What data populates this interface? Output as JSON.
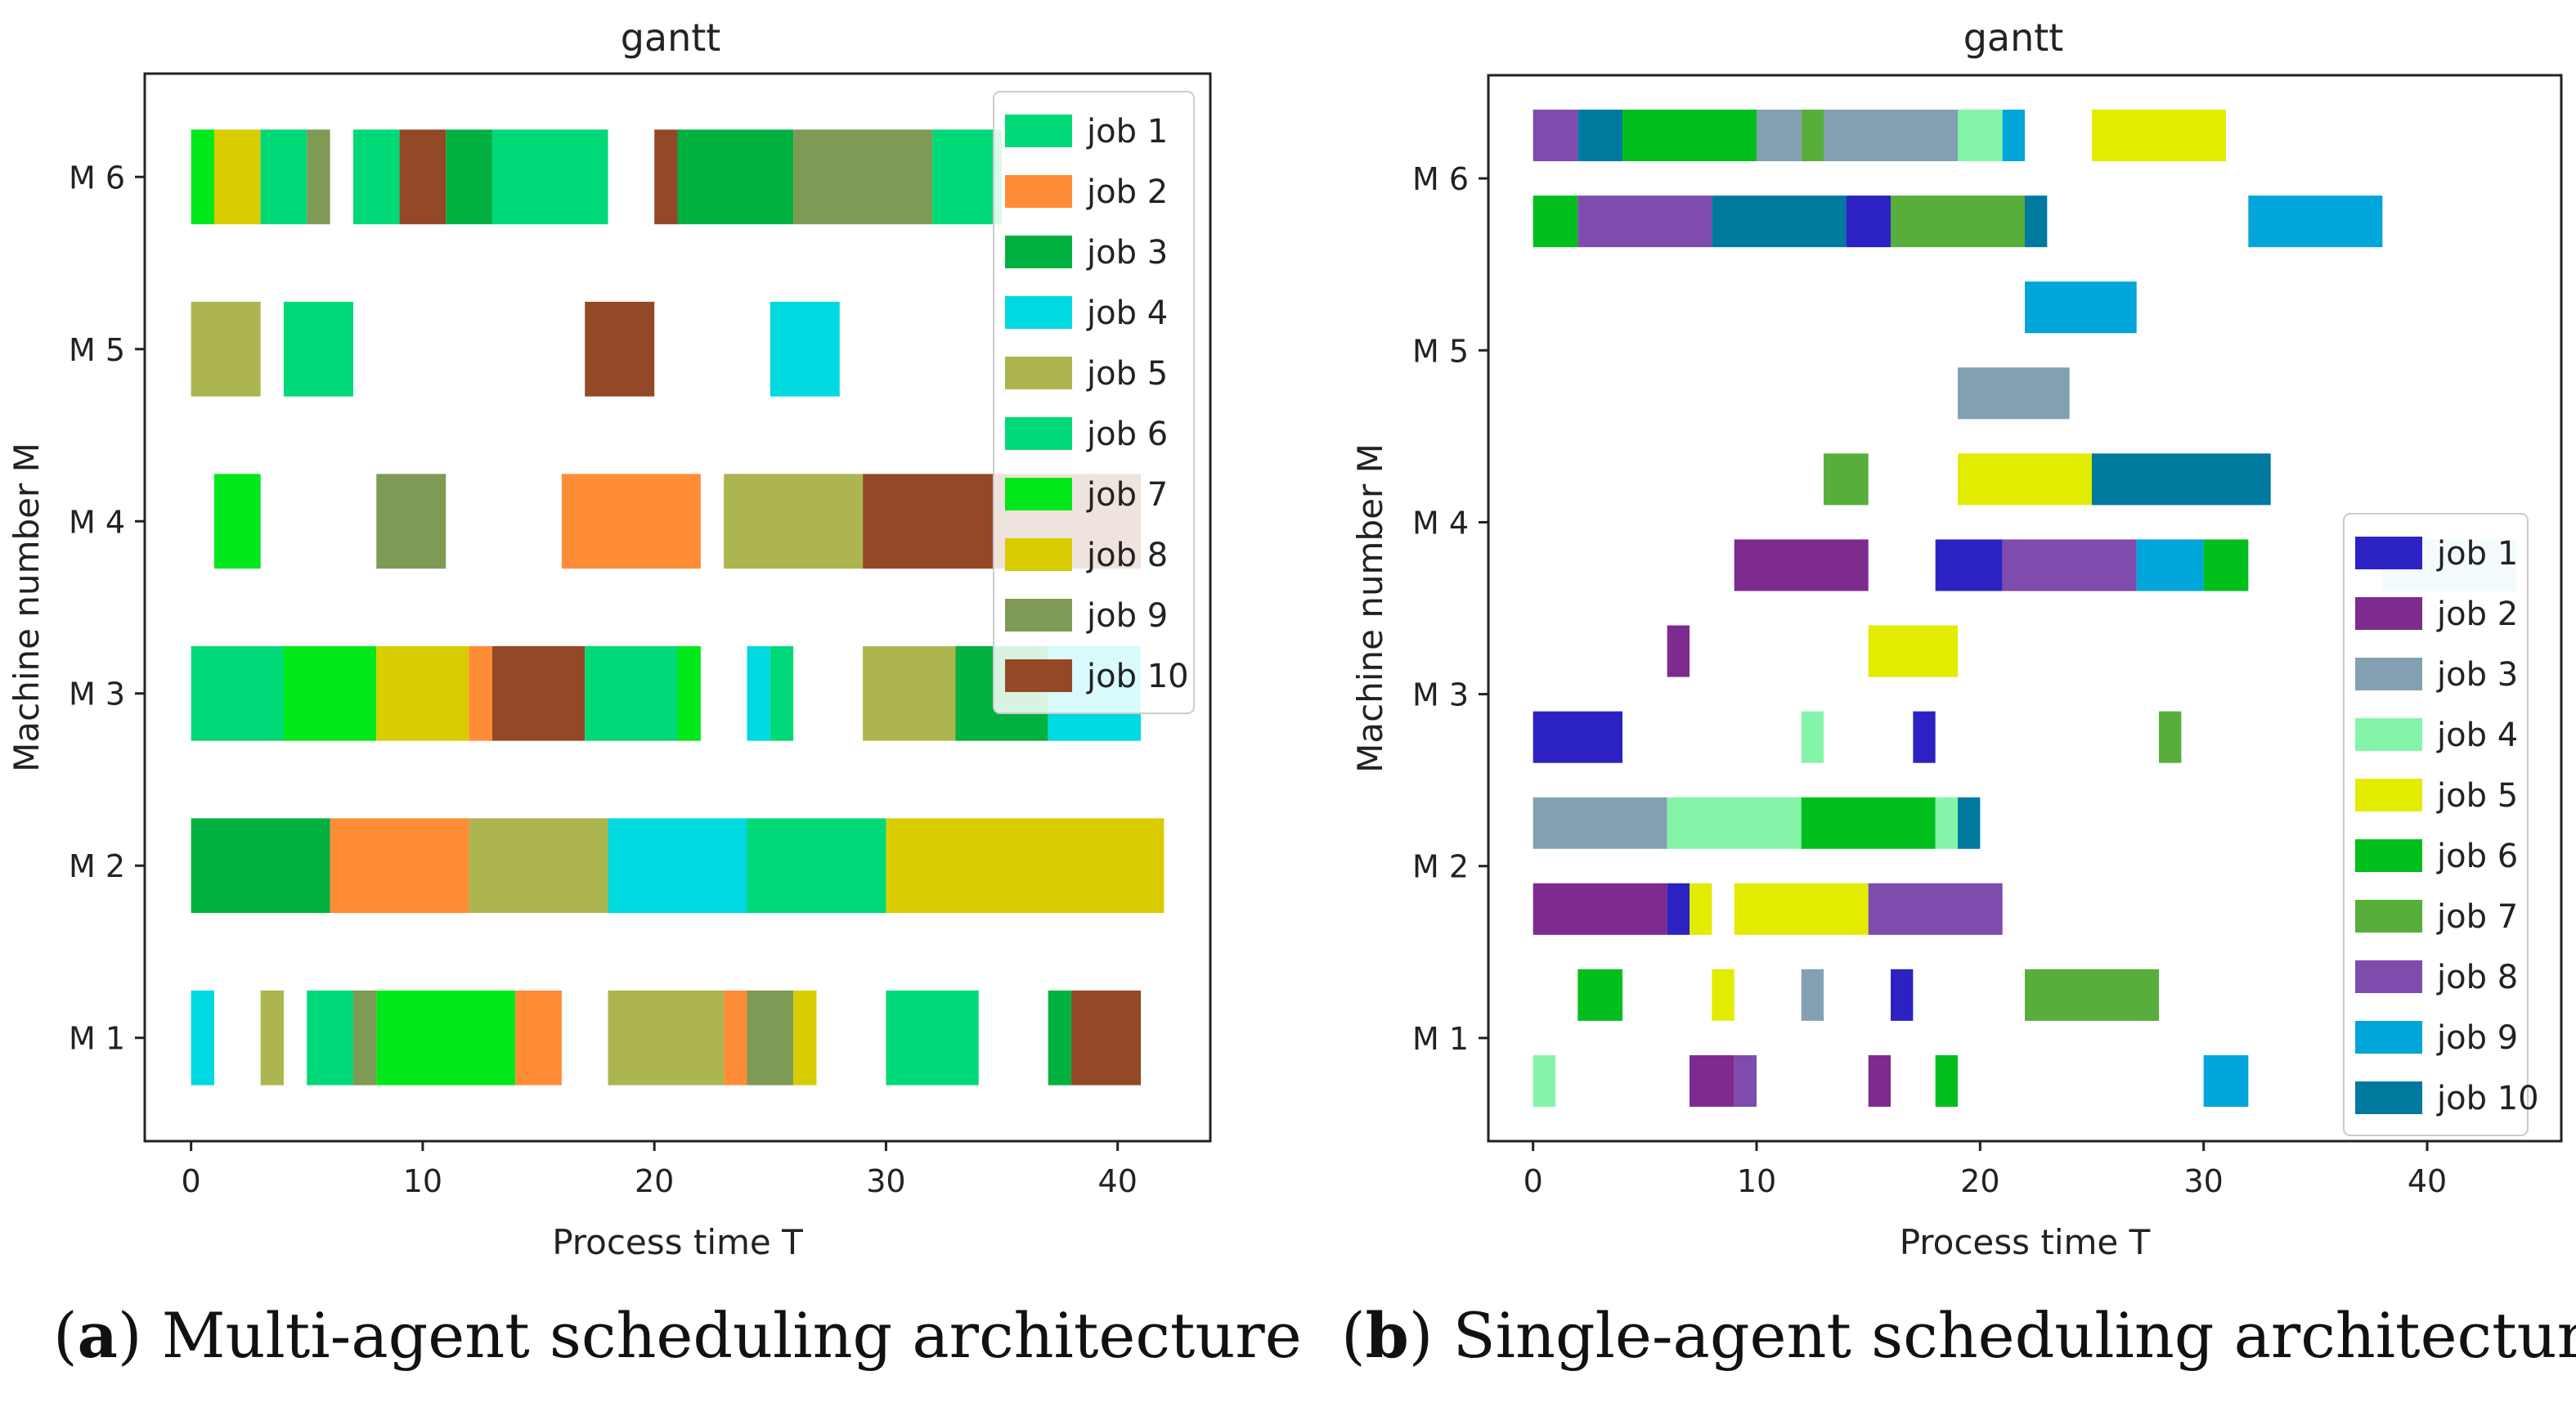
{
  "chart_data": [
    {
      "type": "gantt",
      "title": "gantt",
      "xlabel": "Process time T",
      "ylabel": "Machine number M",
      "xlim": [
        -2,
        44
      ],
      "xticks": [
        0,
        10,
        20,
        30,
        40
      ],
      "machines": [
        "M 1",
        "M 2",
        "M 3",
        "M 4",
        "M 5",
        "M 6"
      ],
      "legend": {
        "location": "top-right",
        "jobs": [
          {
            "name": "job 1",
            "color": "#00d977"
          },
          {
            "name": "job 2",
            "color": "#ff8c36"
          },
          {
            "name": "job 3",
            "color": "#00b140"
          },
          {
            "name": "job 4",
            "color": "#00d9e0"
          },
          {
            "name": "job 5",
            "color": "#adb54f"
          },
          {
            "name": "job 6",
            "color": "#00d977"
          },
          {
            "name": "job 7",
            "color": "#00e81a"
          },
          {
            "name": "job 8",
            "color": "#d9cc00"
          },
          {
            "name": "job 9",
            "color": "#7f9a55"
          },
          {
            "name": "job 10",
            "color": "#934826"
          }
        ]
      },
      "bars": [
        {
          "m": 1,
          "s": 0,
          "e": 1,
          "job": 4
        },
        {
          "m": 1,
          "s": 3,
          "e": 4,
          "job": 5
        },
        {
          "m": 1,
          "s": 5,
          "e": 7,
          "job": 1
        },
        {
          "m": 1,
          "s": 7,
          "e": 8,
          "job": 9
        },
        {
          "m": 1,
          "s": 8,
          "e": 14,
          "job": 7
        },
        {
          "m": 1,
          "s": 14,
          "e": 16,
          "job": 2
        },
        {
          "m": 1,
          "s": 18,
          "e": 23,
          "job": 5
        },
        {
          "m": 1,
          "s": 23,
          "e": 24,
          "job": 2
        },
        {
          "m": 1,
          "s": 24,
          "e": 26,
          "job": 9
        },
        {
          "m": 1,
          "s": 26,
          "e": 27,
          "job": 8
        },
        {
          "m": 1,
          "s": 30,
          "e": 34,
          "job": 1
        },
        {
          "m": 1,
          "s": 37,
          "e": 38,
          "job": 3
        },
        {
          "m": 1,
          "s": 38,
          "e": 41,
          "job": 10
        },
        {
          "m": 2,
          "s": 0,
          "e": 6,
          "job": 3
        },
        {
          "m": 2,
          "s": 6,
          "e": 12,
          "job": 2
        },
        {
          "m": 2,
          "s": 12,
          "e": 18,
          "job": 5
        },
        {
          "m": 2,
          "s": 18,
          "e": 24,
          "job": 4
        },
        {
          "m": 2,
          "s": 24,
          "e": 30,
          "job": 1
        },
        {
          "m": 2,
          "s": 30,
          "e": 42,
          "job": 8
        },
        {
          "m": 3,
          "s": 0,
          "e": 4,
          "job": 1
        },
        {
          "m": 3,
          "s": 4,
          "e": 8,
          "job": 7
        },
        {
          "m": 3,
          "s": 8,
          "e": 12,
          "job": 8
        },
        {
          "m": 3,
          "s": 12,
          "e": 13,
          "job": 2
        },
        {
          "m": 3,
          "s": 13,
          "e": 17,
          "job": 10
        },
        {
          "m": 3,
          "s": 17,
          "e": 21,
          "job": 1
        },
        {
          "m": 3,
          "s": 21,
          "e": 22,
          "job": 7
        },
        {
          "m": 3,
          "s": 24,
          "e": 25,
          "job": 4
        },
        {
          "m": 3,
          "s": 25,
          "e": 26,
          "job": 1
        },
        {
          "m": 3,
          "s": 29,
          "e": 33,
          "job": 5
        },
        {
          "m": 3,
          "s": 33,
          "e": 37,
          "job": 3
        },
        {
          "m": 3,
          "s": 37,
          "e": 41,
          "job": 4
        },
        {
          "m": 4,
          "s": 1,
          "e": 3,
          "job": 7
        },
        {
          "m": 4,
          "s": 8,
          "e": 11,
          "job": 9
        },
        {
          "m": 4,
          "s": 16,
          "e": 22,
          "job": 2
        },
        {
          "m": 4,
          "s": 23,
          "e": 29,
          "job": 5
        },
        {
          "m": 4,
          "s": 29,
          "e": 41,
          "job": 10
        },
        {
          "m": 5,
          "s": 0,
          "e": 3,
          "job": 5
        },
        {
          "m": 5,
          "s": 4,
          "e": 7,
          "job": 1
        },
        {
          "m": 5,
          "s": 17,
          "e": 20,
          "job": 10
        },
        {
          "m": 5,
          "s": 25,
          "e": 28,
          "job": 4
        },
        {
          "m": 6,
          "s": 0,
          "e": 1,
          "job": 7
        },
        {
          "m": 6,
          "s": 1,
          "e": 3,
          "job": 8
        },
        {
          "m": 6,
          "s": 3,
          "e": 5,
          "job": 1
        },
        {
          "m": 6,
          "s": 5,
          "e": 6,
          "job": 9
        },
        {
          "m": 6,
          "s": 7,
          "e": 9,
          "job": 1
        },
        {
          "m": 6,
          "s": 9,
          "e": 11,
          "job": 10
        },
        {
          "m": 6,
          "s": 11,
          "e": 13,
          "job": 3
        },
        {
          "m": 6,
          "s": 13,
          "e": 18,
          "job": 1
        },
        {
          "m": 6,
          "s": 20,
          "e": 21,
          "job": 10
        },
        {
          "m": 6,
          "s": 21,
          "e": 26,
          "job": 3
        },
        {
          "m": 6,
          "s": 26,
          "e": 32,
          "job": 9
        },
        {
          "m": 6,
          "s": 32,
          "e": 35,
          "job": 1
        }
      ]
    },
    {
      "type": "gantt",
      "title": "gantt",
      "xlabel": "Process time T",
      "ylabel": "Machine number M",
      "xlim": [
        -2,
        46
      ],
      "xticks": [
        0,
        10,
        20,
        30,
        40
      ],
      "machines": [
        "M 1",
        "M 2",
        "M 3",
        "M 4",
        "M 5",
        "M 6"
      ],
      "legend": {
        "location": "lower-right",
        "jobs": [
          {
            "name": "job 1",
            "color": "#2c22c3"
          },
          {
            "name": "job 2",
            "color": "#7d2b8e"
          },
          {
            "name": "job 3",
            "color": "#83a0b2"
          },
          {
            "name": "job 4",
            "color": "#84f5a8"
          },
          {
            "name": "job 5",
            "color": "#e1ec00"
          },
          {
            "name": "job 6",
            "color": "#00bf1d"
          },
          {
            "name": "job 7",
            "color": "#57ae3a"
          },
          {
            "name": "job 8",
            "color": "#7f4bad"
          },
          {
            "name": "job 9",
            "color": "#00a5d9"
          },
          {
            "name": "job 10",
            "color": "#00799e"
          }
        ]
      },
      "bars": [
        {
          "y": 0.75,
          "s": 0,
          "e": 1,
          "job": 4
        },
        {
          "y": 0.75,
          "s": 7,
          "e": 9,
          "job": 2
        },
        {
          "y": 0.75,
          "s": 9,
          "e": 10,
          "job": 8
        },
        {
          "y": 0.75,
          "s": 15,
          "e": 16,
          "job": 2
        },
        {
          "y": 0.75,
          "s": 18,
          "e": 19,
          "job": 6
        },
        {
          "y": 0.75,
          "s": 30,
          "e": 32,
          "job": 9
        },
        {
          "y": 1.25,
          "s": 2,
          "e": 4,
          "job": 6
        },
        {
          "y": 1.25,
          "s": 8,
          "e": 9,
          "job": 5
        },
        {
          "y": 1.25,
          "s": 12,
          "e": 13,
          "job": 3
        },
        {
          "y": 1.25,
          "s": 16,
          "e": 17,
          "job": 1
        },
        {
          "y": 1.25,
          "s": 22,
          "e": 28,
          "job": 7
        },
        {
          "y": 1.75,
          "s": 0,
          "e": 6,
          "job": 2
        },
        {
          "y": 1.75,
          "s": 6,
          "e": 7,
          "job": 1
        },
        {
          "y": 1.75,
          "s": 7,
          "e": 8,
          "job": 5
        },
        {
          "y": 1.75,
          "s": 9,
          "e": 15,
          "job": 5
        },
        {
          "y": 1.75,
          "s": 15,
          "e": 21,
          "job": 8
        },
        {
          "y": 2.25,
          "s": 0,
          "e": 6,
          "job": 3
        },
        {
          "y": 2.25,
          "s": 6,
          "e": 12,
          "job": 4
        },
        {
          "y": 2.25,
          "s": 12,
          "e": 18,
          "job": 6
        },
        {
          "y": 2.25,
          "s": 18,
          "e": 19,
          "job": 4
        },
        {
          "y": 2.25,
          "s": 19,
          "e": 20,
          "job": 10
        },
        {
          "y": 2.75,
          "s": 0,
          "e": 4,
          "job": 1
        },
        {
          "y": 2.75,
          "s": 12,
          "e": 13,
          "job": 4
        },
        {
          "y": 2.75,
          "s": 17,
          "e": 18,
          "job": 1
        },
        {
          "y": 2.75,
          "s": 28,
          "e": 29,
          "job": 7
        },
        {
          "y": 3.25,
          "s": 6,
          "e": 7,
          "job": 2
        },
        {
          "y": 3.25,
          "s": 15,
          "e": 19,
          "job": 5
        },
        {
          "y": 3.75,
          "s": 9,
          "e": 15,
          "job": 2
        },
        {
          "y": 3.75,
          "s": 18,
          "e": 21,
          "job": 1
        },
        {
          "y": 3.75,
          "s": 21,
          "e": 27,
          "job": 8
        },
        {
          "y": 3.75,
          "s": 27,
          "e": 30,
          "job": 9
        },
        {
          "y": 3.75,
          "s": 30,
          "e": 32,
          "job": 6
        },
        {
          "y": 3.75,
          "s": 38,
          "e": 44,
          "job": 9,
          "faded": true
        },
        {
          "y": 4.25,
          "s": 13,
          "e": 15,
          "job": 7
        },
        {
          "y": 4.25,
          "s": 19,
          "e": 25,
          "job": 5
        },
        {
          "y": 4.25,
          "s": 25,
          "e": 33,
          "job": 10
        },
        {
          "y": 4.75,
          "s": 19,
          "e": 24,
          "job": 3
        },
        {
          "y": 5.25,
          "s": 22,
          "e": 27,
          "job": 9
        },
        {
          "y": 5.75,
          "s": 0,
          "e": 2,
          "job": 6
        },
        {
          "y": 5.75,
          "s": 2,
          "e": 8,
          "job": 8
        },
        {
          "y": 5.75,
          "s": 8,
          "e": 14,
          "job": 10
        },
        {
          "y": 5.75,
          "s": 14,
          "e": 16,
          "job": 1
        },
        {
          "y": 5.75,
          "s": 16,
          "e": 22,
          "job": 7
        },
        {
          "y": 5.75,
          "s": 22,
          "e": 23,
          "job": 10
        },
        {
          "y": 5.75,
          "s": 32,
          "e": 38,
          "job": 9
        },
        {
          "y": 6.25,
          "s": 0,
          "e": 2,
          "job": 8
        },
        {
          "y": 6.25,
          "s": 2,
          "e": 4,
          "job": 10
        },
        {
          "y": 6.25,
          "s": 4,
          "e": 10,
          "job": 6
        },
        {
          "y": 6.25,
          "s": 10,
          "e": 12,
          "job": 3
        },
        {
          "y": 6.25,
          "s": 12,
          "e": 13,
          "job": 7
        },
        {
          "y": 6.25,
          "s": 13,
          "e": 19,
          "job": 3
        },
        {
          "y": 6.25,
          "s": 19,
          "e": 21,
          "job": 4
        },
        {
          "y": 6.25,
          "s": 21,
          "e": 22,
          "job": 9
        },
        {
          "y": 6.25,
          "s": 25,
          "e": 31,
          "job": 5
        }
      ]
    }
  ],
  "captions": {
    "a_letter": "a",
    "a_text": " Multi-agent scheduling architecture",
    "b_letter": "b",
    "b_text": " Single-agent scheduling architecture"
  }
}
